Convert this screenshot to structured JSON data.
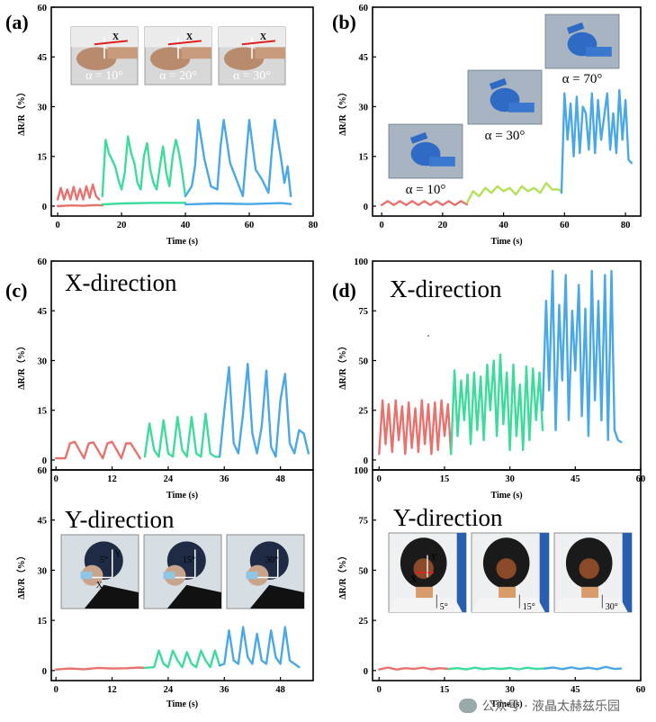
{
  "colors": {
    "red": "#E8726E",
    "green": "#3DDC9A",
    "blue": "#4AA8E6",
    "yellowgreen": "#B5E05A"
  },
  "watermark": "公众号 · 液晶太赫兹乐园",
  "chart_data": [
    {
      "id": "a",
      "type": "line",
      "panel_label": "(a)",
      "xlabel": "Time (s)",
      "ylabel": "ΔR/R（%）",
      "xlim": [
        -2,
        80
      ],
      "ylim": [
        -3,
        60
      ],
      "xticks": [
        0,
        20,
        40,
        60,
        80
      ],
      "yticks": [
        0,
        15,
        30,
        45,
        60
      ],
      "xtick_labels": [
        "0",
        "20",
        "40",
        "60",
        "80"
      ],
      "ytick_labels": [
        "0",
        "15",
        "30",
        "45",
        "60"
      ],
      "insets": [
        {
          "caption": "α = 10°",
          "marker": "X",
          "kind": "wrist"
        },
        {
          "caption": "α = 20°",
          "marker": "X",
          "kind": "wrist"
        },
        {
          "caption": "α = 30°",
          "marker": "X",
          "kind": "wrist"
        }
      ],
      "series": [
        {
          "color": "red",
          "x": [
            0,
            1,
            2,
            3,
            4,
            5,
            6,
            7,
            8,
            9,
            10,
            11,
            12,
            13
          ],
          "y": [
            2,
            5.5,
            2,
            5,
            2,
            5.8,
            2,
            5.2,
            2,
            6,
            2.5,
            6.5,
            3,
            2
          ]
        },
        {
          "color": "red",
          "x": [
            0,
            4,
            8,
            12,
            14
          ],
          "y": [
            0,
            0.2,
            0.1,
            0.3,
            0.2
          ]
        },
        {
          "color": "green",
          "x": [
            14,
            15,
            16,
            18,
            19,
            20,
            21,
            22,
            23,
            24,
            25,
            26,
            27,
            28,
            29,
            30,
            31,
            32,
            33,
            34,
            35,
            36,
            37,
            38,
            39,
            40
          ],
          "y": [
            3,
            20,
            16,
            12,
            8,
            5,
            10,
            21,
            16,
            13,
            7,
            5,
            15,
            19,
            11,
            7,
            5,
            12,
            18,
            10,
            6,
            15,
            20,
            16,
            10,
            3
          ]
        },
        {
          "color": "green",
          "x": [
            14,
            20,
            30,
            40
          ],
          "y": [
            0.5,
            0.8,
            1,
            1
          ]
        },
        {
          "color": "blue",
          "x": [
            40,
            42,
            43,
            44,
            46,
            48,
            50,
            51,
            52,
            54,
            56,
            58,
            59,
            60,
            62,
            64,
            66,
            67,
            68,
            70,
            71,
            72,
            73
          ],
          "y": [
            3,
            6,
            12,
            26,
            14,
            6,
            5,
            18,
            26,
            13,
            8,
            3,
            15,
            26,
            11,
            8,
            4,
            16,
            26,
            14,
            7,
            12,
            3
          ]
        },
        {
          "color": "blue",
          "x": [
            40,
            50,
            60,
            70,
            73
          ],
          "y": [
            0.5,
            0.8,
            0.6,
            0.9,
            0.6
          ]
        }
      ]
    },
    {
      "id": "b",
      "type": "line",
      "panel_label": "(b)",
      "xlabel": "Time (s)",
      "ylabel": "ΔR/R（%）",
      "xlim": [
        -3,
        85
      ],
      "ylim": [
        -3,
        60
      ],
      "xticks": [
        0,
        20,
        40,
        60,
        80
      ],
      "yticks": [
        0,
        15,
        30,
        45,
        60
      ],
      "xtick_labels": [
        "0",
        "20",
        "40",
        "60",
        "80"
      ],
      "ytick_labels": [
        "0",
        "15",
        "30",
        "45",
        "60"
      ],
      "insets": [
        {
          "caption": "α = 10°",
          "kind": "glove"
        },
        {
          "caption": "α = 30°",
          "kind": "glove"
        },
        {
          "caption": "α = 70°",
          "kind": "glove"
        }
      ],
      "series": [
        {
          "color": "red",
          "x": [
            0,
            2,
            4,
            6,
            8,
            10,
            12,
            14,
            16,
            18,
            20,
            22,
            24,
            26,
            28
          ],
          "y": [
            0.3,
            1.5,
            0.3,
            1.5,
            0.3,
            1.5,
            0.3,
            1.5,
            0.3,
            1.5,
            0.3,
            1.5,
            0.3,
            1.5,
            0.5
          ]
        },
        {
          "color": "yellowgreen",
          "x": [
            28,
            30,
            32,
            34,
            36,
            38,
            40,
            42,
            44,
            46,
            48,
            50,
            52,
            54,
            56,
            58,
            59
          ],
          "y": [
            1,
            4.5,
            3,
            5.5,
            4,
            6,
            4.5,
            5.5,
            3.5,
            6,
            4.5,
            5.5,
            4,
            7,
            5,
            5,
            4.5
          ]
        },
        {
          "color": "blue",
          "x": [
            59,
            60,
            61,
            62,
            63,
            64,
            65,
            66,
            67,
            68,
            69,
            70,
            71,
            72,
            73,
            74,
            75,
            76,
            77,
            78,
            79,
            80,
            81,
            82
          ],
          "y": [
            4,
            34,
            20,
            31,
            15,
            33,
            16,
            30,
            28,
            17,
            34,
            16,
            32,
            20,
            27,
            34,
            17,
            28,
            16,
            35,
            20,
            32,
            14,
            13
          ]
        }
      ]
    },
    {
      "id": "c1",
      "type": "line",
      "panel_label": "(c)",
      "title": "X-direction",
      "xlabel": "Time (s)",
      "ylabel": "ΔR/R（%）",
      "xlim": [
        -1,
        55
      ],
      "ylim": [
        -3,
        60
      ],
      "xticks": [
        0,
        12,
        24,
        36,
        48
      ],
      "yticks": [
        0,
        15,
        30,
        45,
        60
      ],
      "xtick_labels": [
        "0",
        "12",
        "24",
        "36",
        "48"
      ],
      "ytick_labels": [
        "0",
        "15",
        "30",
        "45",
        "60"
      ],
      "series": [
        {
          "color": "red",
          "x": [
            0,
            2,
            3,
            4,
            6,
            7,
            8,
            10,
            11,
            12,
            14,
            15,
            16,
            18
          ],
          "y": [
            0.5,
            0.5,
            5,
            5.5,
            0.5,
            5,
            5.3,
            0.5,
            5,
            5.5,
            0.5,
            5,
            5,
            0.5
          ]
        },
        {
          "color": "green",
          "x": [
            19,
            20,
            21,
            22,
            23,
            24,
            25,
            26,
            27,
            28,
            29,
            30,
            31,
            32,
            33,
            34,
            35
          ],
          "y": [
            1,
            11,
            3,
            1,
            12,
            2,
            1,
            13,
            3,
            1,
            13,
            2,
            1,
            14,
            2,
            1,
            1
          ]
        },
        {
          "color": "blue",
          "x": [
            35,
            36,
            37,
            38,
            39,
            40,
            41,
            42,
            43,
            44,
            45,
            46,
            47,
            48,
            49,
            50,
            51,
            52,
            53,
            54
          ],
          "y": [
            1,
            15,
            28,
            5,
            2,
            14,
            29,
            8,
            2,
            10,
            27,
            4,
            1,
            18,
            26,
            5,
            2,
            9,
            8,
            2
          ]
        }
      ]
    },
    {
      "id": "c2",
      "type": "line",
      "title": "Y-direction",
      "xlabel": "Time (s)",
      "ylabel": "ΔR/R（%）",
      "xlim": [
        -1,
        55
      ],
      "ylim": [
        -3,
        60
      ],
      "xticks": [
        0,
        12,
        24,
        36,
        48
      ],
      "yticks": [
        0,
        15,
        30,
        45,
        60
      ],
      "xtick_labels": [
        "0",
        "12",
        "24",
        "36",
        "48"
      ],
      "ytick_labels": [
        "0",
        "15",
        "30",
        "45",
        "60"
      ],
      "insets": [
        {
          "caption": "5°",
          "axis_x": "X",
          "axis_y": "Y",
          "kind": "head-side"
        },
        {
          "caption": "15°",
          "kind": "head-side"
        },
        {
          "caption": "30°",
          "kind": "head-side"
        }
      ],
      "series": [
        {
          "color": "red",
          "x": [
            0,
            3,
            6,
            9,
            12,
            15,
            18,
            19
          ],
          "y": [
            0.3,
            0.6,
            0.4,
            0.8,
            0.6,
            0.7,
            0.9,
            0.8
          ]
        },
        {
          "color": "green",
          "x": [
            19,
            21,
            22,
            23,
            24,
            25,
            26,
            27,
            28,
            29,
            30,
            31,
            32,
            33,
            34,
            35
          ],
          "y": [
            0.8,
            1,
            6,
            2,
            1,
            6,
            3,
            1,
            5.5,
            2,
            1,
            6,
            3,
            1,
            6,
            1.5
          ]
        },
        {
          "color": "blue",
          "x": [
            35,
            36,
            37,
            38,
            39,
            40,
            41,
            42,
            43,
            44,
            45,
            46,
            47,
            48,
            49,
            50,
            51,
            52
          ],
          "y": [
            1.5,
            2,
            12,
            3,
            2,
            13,
            4,
            2,
            11,
            3,
            2,
            12,
            4,
            2,
            13,
            3,
            2,
            1
          ]
        }
      ]
    },
    {
      "id": "d1",
      "type": "line",
      "panel_label": "(d)",
      "title": "X-direction",
      "xlabel": "Time (s)",
      "ylabel": "ΔR/R（%）",
      "xlim": [
        -1.5,
        60
      ],
      "ylim": [
        -5,
        100
      ],
      "xticks": [
        0,
        15,
        30,
        45,
        60
      ],
      "yticks": [
        0,
        25,
        50,
        75,
        100
      ],
      "xtick_labels": [
        "0",
        "15",
        "30",
        "45",
        "60"
      ],
      "ytick_labels": [
        "0",
        "25",
        "50",
        "75",
        "100"
      ],
      "series": [
        {
          "color": "red",
          "x": [
            0,
            0.8,
            1.5,
            2.2,
            3,
            3.8,
            4.5,
            5.3,
            6,
            6.8,
            7.5,
            8.3,
            9,
            9.8,
            10.5,
            11.3,
            12,
            12.8,
            13.5,
            14.3,
            15,
            15.8,
            16.5
          ],
          "y": [
            3,
            30,
            8,
            28,
            4,
            30,
            10,
            27,
            3,
            29,
            6,
            26,
            4,
            30,
            8,
            28,
            3,
            29,
            5,
            30,
            12,
            28,
            3
          ]
        },
        {
          "color": "green",
          "x": [
            16.5,
            17.3,
            18,
            18.8,
            19.5,
            20.3,
            21,
            21.8,
            22.5,
            23.3,
            24,
            24.8,
            25.5,
            26.3,
            27,
            27.8,
            28.5,
            29.3,
            30,
            30.8,
            31.5,
            32.3,
            33,
            33.8,
            34.5,
            35.3,
            36,
            36.8,
            37.5
          ],
          "y": [
            3,
            45,
            12,
            40,
            20,
            43,
            8,
            44,
            15,
            42,
            10,
            48,
            25,
            50,
            12,
            53,
            18,
            44,
            5,
            48,
            12,
            38,
            5,
            47,
            10,
            46,
            20,
            44,
            15
          ]
        },
        {
          "color": "blue",
          "x": [
            37.5,
            38.3,
            39,
            39.8,
            40.5,
            41.3,
            42,
            42.8,
            43.5,
            44.3,
            45,
            45.8,
            46.5,
            47.3,
            48,
            48.8,
            49.5,
            50.3,
            51,
            51.8,
            52.5,
            53.3,
            54,
            54.8,
            55.5
          ],
          "y": [
            25,
            80,
            35,
            95,
            15,
            78,
            40,
            93,
            20,
            75,
            45,
            88,
            22,
            76,
            12,
            95,
            30,
            80,
            20,
            93,
            10,
            95,
            15,
            10,
            9
          ]
        }
      ]
    },
    {
      "id": "d2",
      "type": "line",
      "title": "Y-direction",
      "xlabel": "Time (s)",
      "ylabel": "ΔR/R（%）",
      "xlim": [
        -1.5,
        60
      ],
      "ylim": [
        -5,
        100
      ],
      "xticks": [
        0,
        15,
        30,
        45,
        60
      ],
      "yticks": [
        0,
        25,
        50,
        75,
        100
      ],
      "xtick_labels": [
        "0",
        "15",
        "30",
        "45",
        "60"
      ],
      "ytick_labels": [
        "0",
        "25",
        "50",
        "75",
        "100"
      ],
      "insets": [
        {
          "caption": "5°",
          "axis_x": "X",
          "axis_y": "Y",
          "kind": "head-back"
        },
        {
          "caption": "15°",
          "kind": "head-back"
        },
        {
          "caption": "30°",
          "kind": "head-back"
        }
      ],
      "series": [
        {
          "color": "red",
          "x": [
            0,
            2,
            4,
            6,
            8,
            10,
            12,
            14,
            16
          ],
          "y": [
            0.5,
            1.5,
            0.5,
            1.2,
            0.8,
            1.5,
            0.6,
            1.2,
            0.8
          ]
        },
        {
          "color": "green",
          "x": [
            16,
            18,
            20,
            22,
            24,
            26,
            28,
            30,
            32,
            34,
            36,
            38
          ],
          "y": [
            0.8,
            1.2,
            0.6,
            1.4,
            0.7,
            1.2,
            0.8,
            1.3,
            0.6,
            1.4,
            0.8,
            1
          ]
        },
        {
          "color": "blue",
          "x": [
            38,
            40,
            42,
            44,
            46,
            48,
            50,
            52,
            54,
            55.5
          ],
          "y": [
            1,
            1.5,
            0.7,
            1.6,
            0.8,
            1.4,
            0.7,
            1.8,
            0.8,
            1
          ]
        }
      ]
    }
  ]
}
